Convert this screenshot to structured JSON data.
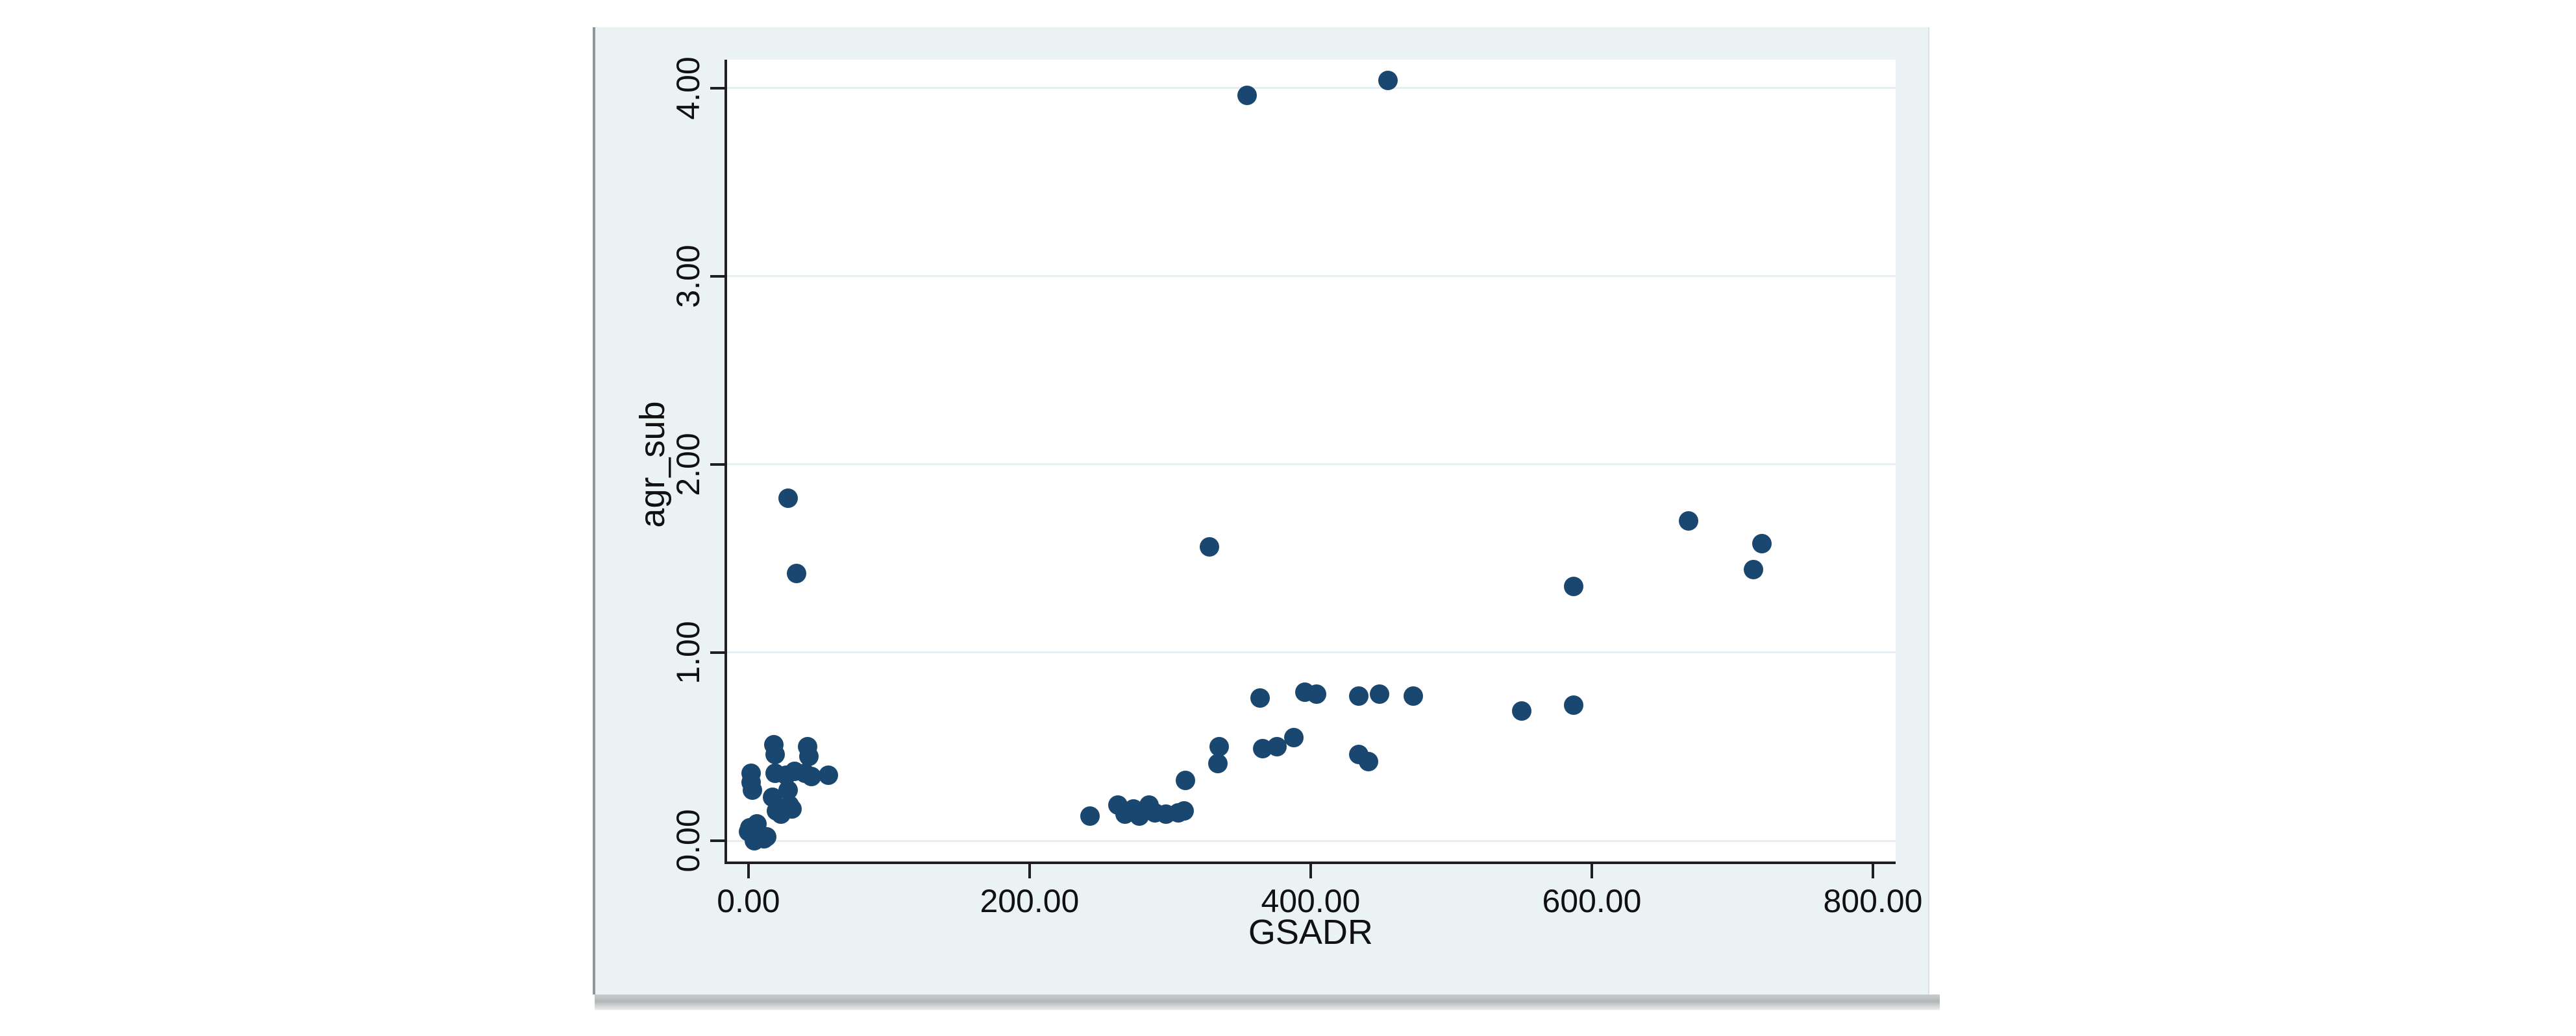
{
  "chart_data": {
    "type": "scatter",
    "xlabel": "GSADR",
    "ylabel": "agr_sub",
    "x_ticks": {
      "values": [
        0,
        200,
        400,
        600,
        800
      ],
      "labels": [
        "0.00",
        "200.00",
        "400.00",
        "600.00",
        "800.00"
      ]
    },
    "y_ticks": {
      "values": [
        0,
        1,
        2,
        3,
        4
      ],
      "labels": [
        "0.00",
        "1.00",
        "2.00",
        "3.00",
        "4.00"
      ]
    },
    "xlim": [
      -15.2,
      816.2
    ],
    "ylim": [
      -0.11,
      4.15
    ],
    "grid": "horizontal-only",
    "legend": "none",
    "marker_color": "#1a476f",
    "background_color": "#eaf2f3",
    "plot_background": "#ffffff",
    "gridline_color": "#e7eef1",
    "axis_color": "#1f1f1f",
    "text_color": "#111111",
    "points": [
      [
        18,
        0.51
      ],
      [
        19,
        0.46
      ],
      [
        42,
        0.5
      ],
      [
        43,
        0.45
      ],
      [
        2,
        0.36
      ],
      [
        2,
        0.31
      ],
      [
        3,
        0.27
      ],
      [
        19,
        0.36
      ],
      [
        27,
        0.35
      ],
      [
        33,
        0.37
      ],
      [
        40,
        0.36
      ],
      [
        45,
        0.34
      ],
      [
        57,
        0.35
      ],
      [
        28,
        0.27
      ],
      [
        17,
        0.23
      ],
      [
        29,
        0.19
      ],
      [
        20,
        0.16
      ],
      [
        31,
        0.17
      ],
      [
        23,
        0.14
      ],
      [
        6,
        0.09
      ],
      [
        1,
        0.07
      ],
      [
        5,
        0.05
      ],
      [
        9,
        0.03
      ],
      [
        0,
        0.05
      ],
      [
        4,
        0.0
      ],
      [
        11,
        0.01
      ],
      [
        13,
        0.02
      ],
      [
        28,
        1.82
      ],
      [
        34,
        1.42
      ],
      [
        243,
        0.13
      ],
      [
        263,
        0.19
      ],
      [
        268,
        0.14
      ],
      [
        274,
        0.17
      ],
      [
        278,
        0.13
      ],
      [
        285,
        0.19
      ],
      [
        289,
        0.15
      ],
      [
        297,
        0.14
      ],
      [
        306,
        0.15
      ],
      [
        310,
        0.16
      ],
      [
        311,
        0.32
      ],
      [
        334,
        0.41
      ],
      [
        335,
        0.5
      ],
      [
        366,
        0.49
      ],
      [
        376,
        0.5
      ],
      [
        388,
        0.55
      ],
      [
        434,
        0.46
      ],
      [
        441,
        0.42
      ],
      [
        364,
        0.76
      ],
      [
        396,
        0.79
      ],
      [
        404,
        0.78
      ],
      [
        434,
        0.77
      ],
      [
        449,
        0.78
      ],
      [
        473,
        0.77
      ],
      [
        328,
        1.56
      ],
      [
        550,
        0.69
      ],
      [
        587,
        0.72
      ],
      [
        587,
        1.35
      ],
      [
        669,
        1.7
      ],
      [
        715,
        1.44
      ],
      [
        721,
        1.58
      ],
      [
        355,
        3.96
      ],
      [
        455,
        4.04
      ]
    ]
  }
}
